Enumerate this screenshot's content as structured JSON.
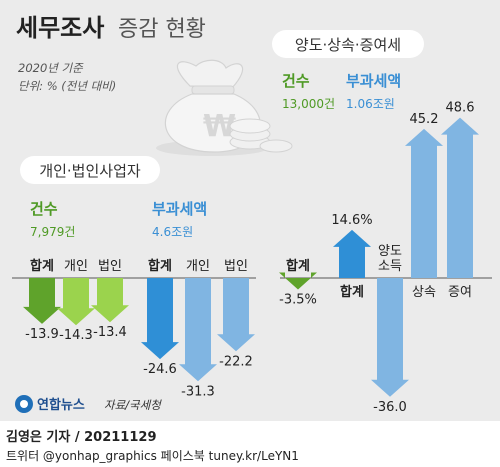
{
  "title": {
    "bold": "세무조사",
    "light": "증감 현황"
  },
  "subtitle": {
    "base": "2020년 기준",
    "unit": "단위: % (전년 대비)"
  },
  "colors": {
    "green_dark": "#5fa32b",
    "green_light": "#9bd34d",
    "blue_dark": "#2f8fd6",
    "blue_light": "#80b5e2",
    "green_text": "#4f9a25",
    "blue_text": "#3a8fd4",
    "panel": "#ebebeb"
  },
  "sections": {
    "individual_corporate": "개인·법인사업자",
    "transfer": "양도·상속·증여세"
  },
  "totals": {
    "left_count_label": "건수",
    "left_count_value": "7,979건",
    "left_tax_label": "부과세액",
    "left_tax_value": "4.6조원",
    "right_count_label": "건수",
    "right_count_value": "13,000건",
    "right_tax_label": "부과세액",
    "right_tax_value": "1.06조원"
  },
  "source": "자료/국세청",
  "logo": "연합뉴스",
  "credit": {
    "byline": "김영은 기자 / 20211129",
    "social": "트위터 @yonhap_graphics  페이스북 tuney.kr/LeYN1"
  },
  "chart_data": [
    {
      "type": "bar",
      "name": "개인·법인사업자 건수",
      "categories": [
        "합계",
        "개인",
        "법인"
      ],
      "values": [
        -13.9,
        -14.3,
        -13.4
      ],
      "value_labels": [
        "-13.9",
        "-14.3",
        "-13.4"
      ]
    },
    {
      "type": "bar",
      "name": "개인·법인사업자 부과세액",
      "categories": [
        "합계",
        "개인",
        "법인"
      ],
      "values": [
        -24.6,
        -31.3,
        -22.2
      ],
      "value_labels": [
        "-24.6",
        "-31.3",
        "-22.2"
      ]
    },
    {
      "type": "bar",
      "name": "양도·상속·증여세 건수",
      "categories": [
        "합계"
      ],
      "values": [
        -3.5
      ],
      "value_labels": [
        "-3.5%"
      ]
    },
    {
      "type": "bar",
      "name": "양도·상속·증여세 부과세액",
      "categories": [
        "합계",
        "양도소득",
        "상속",
        "증여"
      ],
      "category_lines": [
        [
          "합계"
        ],
        [
          "양도",
          "소득"
        ],
        [
          "상속"
        ],
        [
          "증여"
        ]
      ],
      "values": [
        14.6,
        -36.0,
        45.2,
        48.6
      ],
      "value_labels": [
        "14.6%",
        "-36.0",
        "45.2",
        "48.6"
      ]
    }
  ]
}
